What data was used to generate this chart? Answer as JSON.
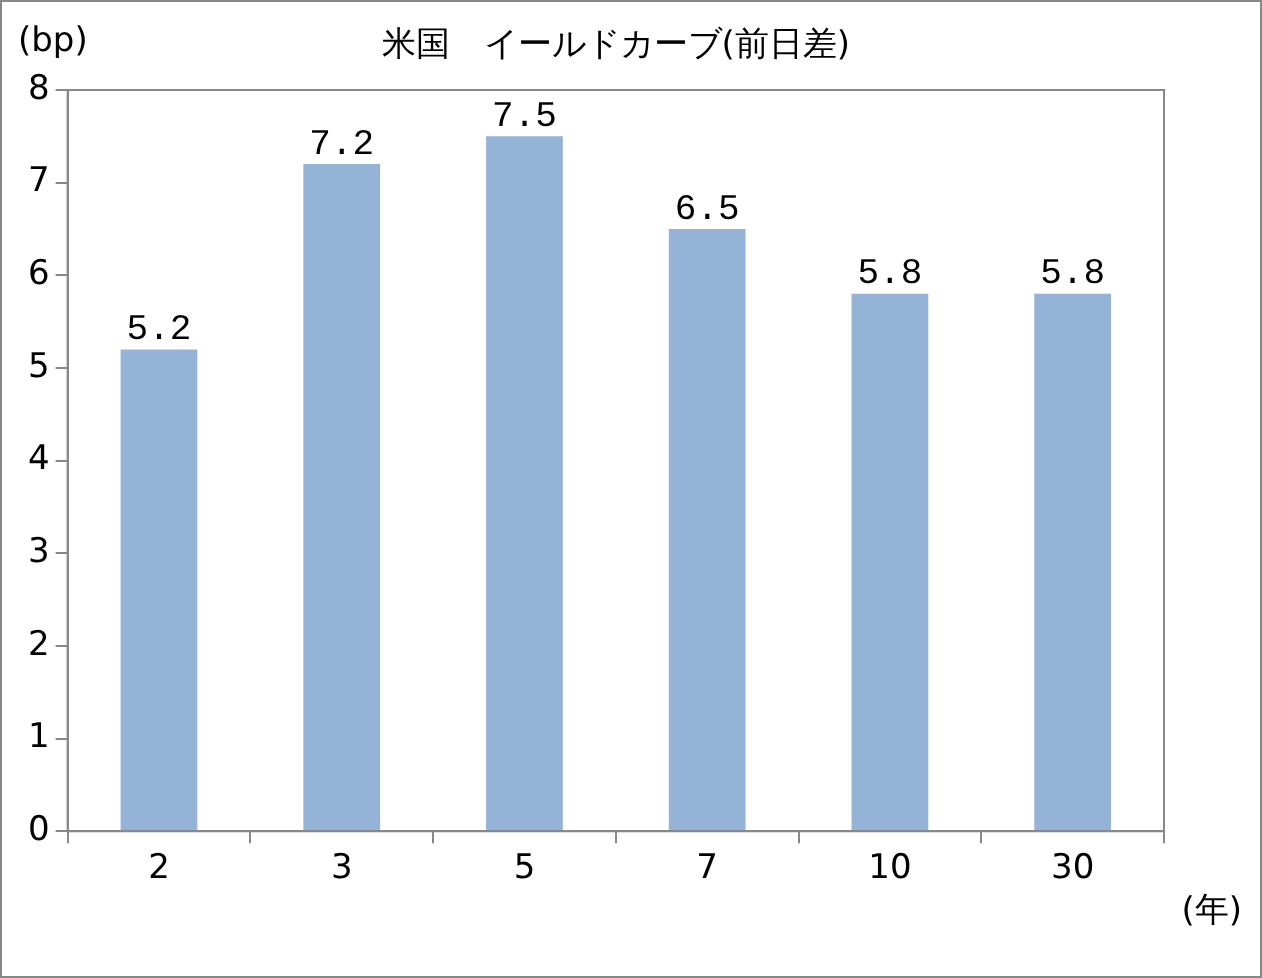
{
  "chart_data": {
    "type": "bar",
    "title": "米国　イールドカーブ(前日差)",
    "ylabel": "(bp)",
    "xlabel": "(年)",
    "categories": [
      "2",
      "3",
      "5",
      "7",
      "10",
      "30"
    ],
    "values": [
      5.2,
      7.2,
      7.5,
      6.5,
      5.8,
      5.8
    ],
    "color": "#95b3d7",
    "ylim": [
      0,
      8
    ],
    "yticks": [
      0,
      1,
      2,
      3,
      4,
      5,
      6,
      7,
      8
    ],
    "grid": false,
    "legend": false,
    "data_labels": true
  }
}
